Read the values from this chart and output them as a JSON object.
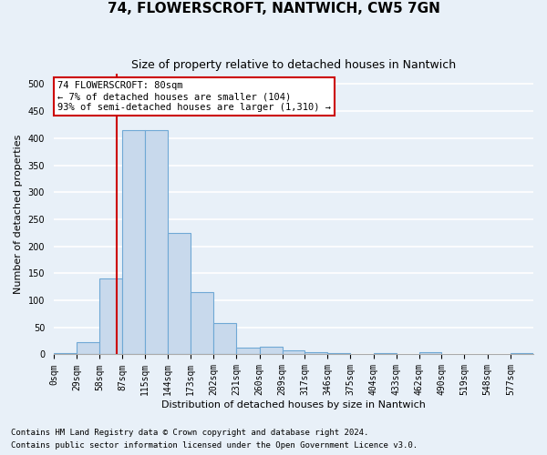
{
  "title": "74, FLOWERSCROFT, NANTWICH, CW5 7GN",
  "subtitle": "Size of property relative to detached houses in Nantwich",
  "xlabel": "Distribution of detached houses by size in Nantwich",
  "ylabel": "Number of detached properties",
  "bin_edges": [
    0,
    29,
    58,
    87,
    115,
    144,
    173,
    202,
    231,
    260,
    289,
    317,
    346,
    375,
    404,
    433,
    462,
    490,
    519,
    548,
    577,
    606
  ],
  "bar_heights": [
    3,
    22,
    140,
    415,
    415,
    225,
    115,
    58,
    13,
    15,
    7,
    5,
    2,
    0,
    3,
    0,
    4,
    0,
    0,
    0,
    2
  ],
  "bar_color": "#c8d9ec",
  "bar_edge_color": "#6fa8d5",
  "property_size": 80,
  "vline_color": "#cc0000",
  "annotation_text": "74 FLOWERSCROFT: 80sqm\n← 7% of detached houses are smaller (104)\n93% of semi-detached houses are larger (1,310) →",
  "annotation_box_color": "#ffffff",
  "annotation_box_edge_color": "#cc0000",
  "ylim": [
    0,
    520
  ],
  "yticks": [
    0,
    50,
    100,
    150,
    200,
    250,
    300,
    350,
    400,
    450,
    500
  ],
  "footer_line1": "Contains HM Land Registry data © Crown copyright and database right 2024.",
  "footer_line2": "Contains public sector information licensed under the Open Government Licence v3.0.",
  "bg_color": "#e8f0f8",
  "plot_bg_color": "#e8f0f8",
  "grid_color": "#ffffff",
  "title_fontsize": 11,
  "subtitle_fontsize": 9,
  "axis_label_fontsize": 8,
  "tick_fontsize": 7,
  "annotation_fontsize": 7.5,
  "footer_fontsize": 6.5
}
